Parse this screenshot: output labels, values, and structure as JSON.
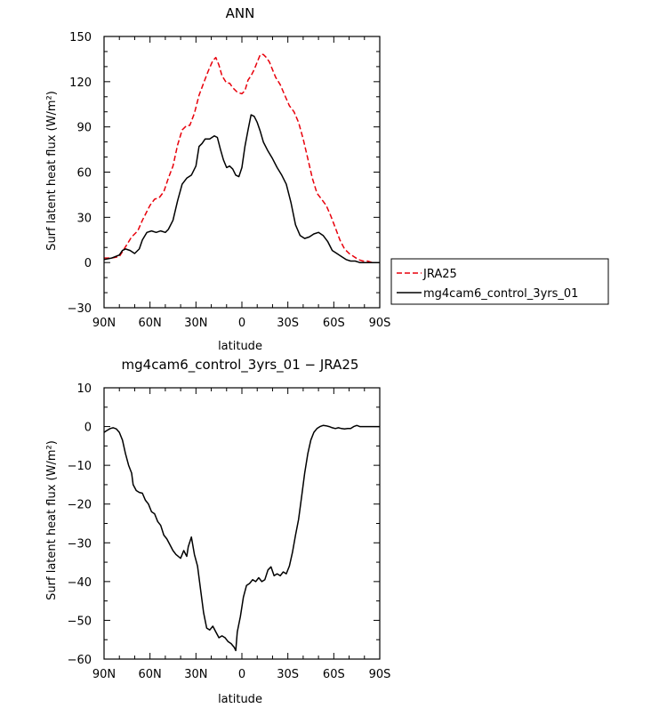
{
  "chart_data": [
    {
      "type": "line",
      "title": "ANN",
      "xlabel": "latitude",
      "ylabel": "Surf latent heat flux (W/m²)",
      "ylim": [
        -30,
        150
      ],
      "yticks": [
        -30,
        0,
        30,
        60,
        90,
        120,
        150
      ],
      "xlim": [
        90,
        -90
      ],
      "xticks": [
        90,
        60,
        30,
        0,
        -30,
        -60,
        -90
      ],
      "xtick_labels": [
        "90N",
        "60N",
        "30N",
        "0",
        "30S",
        "60S",
        "90S"
      ],
      "grid": false,
      "legend_position": "right",
      "series": [
        {
          "name": "JRA25",
          "color": "#e8000b",
          "dash": "dashed",
          "points": [
            [
              90,
              3
            ],
            [
              85,
              3
            ],
            [
              80,
              4
            ],
            [
              75,
              12
            ],
            [
              72,
              17
            ],
            [
              68,
              21
            ],
            [
              65,
              28
            ],
            [
              60,
              38
            ],
            [
              57,
              42
            ],
            [
              54,
              43
            ],
            [
              51,
              47
            ],
            [
              48,
              56
            ],
            [
              45,
              64
            ],
            [
              42,
              78
            ],
            [
              39,
              88
            ],
            [
              36,
              91
            ],
            [
              34,
              91
            ],
            [
              31,
              99
            ],
            [
              28,
              111
            ],
            [
              25,
              119
            ],
            [
              22,
              127
            ],
            [
              19,
              134
            ],
            [
              17,
              136
            ],
            [
              15,
              131
            ],
            [
              13,
              124
            ],
            [
              10,
              119
            ],
            [
              8,
              119
            ],
            [
              6,
              116
            ],
            [
              3,
              113
            ],
            [
              0,
              112
            ],
            [
              -2,
              114
            ],
            [
              -4,
              121
            ],
            [
              -6,
              124
            ],
            [
              -8,
              128
            ],
            [
              -10,
              133
            ],
            [
              -12,
              138
            ],
            [
              -14,
              138
            ],
            [
              -16,
              136
            ],
            [
              -18,
              133
            ],
            [
              -20,
              128
            ],
            [
              -22,
              123
            ],
            [
              -25,
              118
            ],
            [
              -28,
              111
            ],
            [
              -31,
              104
            ],
            [
              -34,
              100
            ],
            [
              -37,
              93
            ],
            [
              -40,
              82
            ],
            [
              -43,
              69
            ],
            [
              -46,
              56
            ],
            [
              -49,
              46
            ],
            [
              -52,
              42
            ],
            [
              -55,
              38
            ],
            [
              -58,
              31
            ],
            [
              -61,
              23
            ],
            [
              -64,
              15
            ],
            [
              -67,
              9
            ],
            [
              -70,
              6
            ],
            [
              -73,
              4
            ],
            [
              -76,
              2
            ],
            [
              -79,
              1
            ],
            [
              -82,
              1
            ],
            [
              -85,
              0
            ],
            [
              -90,
              0
            ]
          ]
        },
        {
          "name": "mg4cam6_control_3yrs_01",
          "color": "#000000",
          "dash": "solid",
          "points": [
            [
              90,
              2
            ],
            [
              85,
              3
            ],
            [
              80,
              5
            ],
            [
              78,
              8
            ],
            [
              76,
              9
            ],
            [
              73,
              8
            ],
            [
              70,
              6
            ],
            [
              67,
              9
            ],
            [
              65,
              15
            ],
            [
              62,
              20
            ],
            [
              59,
              21
            ],
            [
              56,
              20
            ],
            [
              53,
              21
            ],
            [
              50,
              20
            ],
            [
              48,
              22
            ],
            [
              45,
              28
            ],
            [
              42,
              41
            ],
            [
              39,
              52
            ],
            [
              36,
              56
            ],
            [
              33,
              58
            ],
            [
              30,
              64
            ],
            [
              28,
              77
            ],
            [
              26,
              79
            ],
            [
              24,
              82
            ],
            [
              21,
              82
            ],
            [
              18,
              84
            ],
            [
              16,
              83
            ],
            [
              14,
              75
            ],
            [
              12,
              68
            ],
            [
              10,
              63
            ],
            [
              8,
              64
            ],
            [
              6,
              62
            ],
            [
              4,
              58
            ],
            [
              2,
              57
            ],
            [
              0,
              63
            ],
            [
              -2,
              77
            ],
            [
              -4,
              88
            ],
            [
              -6,
              98
            ],
            [
              -8,
              97
            ],
            [
              -10,
              93
            ],
            [
              -12,
              87
            ],
            [
              -14,
              80
            ],
            [
              -17,
              74
            ],
            [
              -20,
              69
            ],
            [
              -23,
              63
            ],
            [
              -26,
              58
            ],
            [
              -29,
              52
            ],
            [
              -32,
              40
            ],
            [
              -35,
              25
            ],
            [
              -38,
              18
            ],
            [
              -41,
              16
            ],
            [
              -44,
              17
            ],
            [
              -47,
              19
            ],
            [
              -50,
              20
            ],
            [
              -53,
              18
            ],
            [
              -56,
              14
            ],
            [
              -59,
              8
            ],
            [
              -62,
              6
            ],
            [
              -65,
              4
            ],
            [
              -68,
              2
            ],
            [
              -71,
              1
            ],
            [
              -74,
              1
            ],
            [
              -77,
              0
            ],
            [
              -80,
              0
            ],
            [
              -85,
              0
            ],
            [
              -90,
              0
            ]
          ]
        }
      ]
    },
    {
      "type": "line",
      "title": "mg4cam6_control_3yrs_01 − JRA25",
      "xlabel": "latitude",
      "ylabel": "Surf latent heat flux (W/m²)",
      "ylim": [
        -60,
        10
      ],
      "yticks": [
        -60,
        -50,
        -40,
        -30,
        -20,
        -10,
        0,
        10
      ],
      "xlim": [
        90,
        -90
      ],
      "xticks": [
        90,
        60,
        30,
        0,
        -30,
        -60,
        -90
      ],
      "xtick_labels": [
        "90N",
        "60N",
        "30N",
        "0",
        "30S",
        "60S",
        "90S"
      ],
      "grid": false,
      "series": [
        {
          "color": "#000000",
          "dash": "solid",
          "points": [
            [
              90,
              -1.5
            ],
            [
              88,
              -1
            ],
            [
              86,
              -0.5
            ],
            [
              84,
              -0.3
            ],
            [
              82,
              -0.6
            ],
            [
              80,
              -1.5
            ],
            [
              78,
              -3.5
            ],
            [
              76,
              -7
            ],
            [
              74,
              -10
            ],
            [
              72,
              -12
            ],
            [
              71,
              -15
            ],
            [
              69,
              -16.5
            ],
            [
              67,
              -17
            ],
            [
              65,
              -17.2
            ],
            [
              63,
              -19
            ],
            [
              61,
              -20
            ],
            [
              59,
              -22
            ],
            [
              57,
              -22.5
            ],
            [
              55,
              -24.5
            ],
            [
              53,
              -25.5
            ],
            [
              51,
              -28
            ],
            [
              49,
              -29
            ],
            [
              47,
              -30.5
            ],
            [
              45,
              -32
            ],
            [
              43,
              -33
            ],
            [
              40,
              -34
            ],
            [
              38,
              -32
            ],
            [
              36,
              -33.5
            ],
            [
              35,
              -31
            ],
            [
              33,
              -28.5
            ],
            [
              31,
              -33
            ],
            [
              29,
              -36
            ],
            [
              27,
              -42
            ],
            [
              25,
              -48
            ],
            [
              23,
              -52
            ],
            [
              21,
              -52.5
            ],
            [
              19,
              -51.5
            ],
            [
              17,
              -53
            ],
            [
              15,
              -54.5
            ],
            [
              13,
              -54
            ],
            [
              11,
              -54.5
            ],
            [
              9,
              -55.5
            ],
            [
              7,
              -56
            ],
            [
              5,
              -57
            ],
            [
              4,
              -57.8
            ],
            [
              3,
              -53
            ],
            [
              1,
              -49
            ],
            [
              -1,
              -44
            ],
            [
              -3,
              -41
            ],
            [
              -5,
              -40.5
            ],
            [
              -7,
              -39.5
            ],
            [
              -9,
              -40
            ],
            [
              -11,
              -39
            ],
            [
              -13,
              -40
            ],
            [
              -15,
              -39.5
            ],
            [
              -17,
              -37
            ],
            [
              -19,
              -36.2
            ],
            [
              -21,
              -38.5
            ],
            [
              -23,
              -38
            ],
            [
              -25,
              -38.5
            ],
            [
              -27,
              -37.5
            ],
            [
              -29,
              -38
            ],
            [
              -31,
              -36
            ],
            [
              -33,
              -32.5
            ],
            [
              -35,
              -28
            ],
            [
              -37,
              -24
            ],
            [
              -39,
              -18
            ],
            [
              -41,
              -12
            ],
            [
              -43,
              -7
            ],
            [
              -45,
              -3.5
            ],
            [
              -47,
              -1.5
            ],
            [
              -49,
              -0.5
            ],
            [
              -51,
              0
            ],
            [
              -53,
              0.3
            ],
            [
              -55,
              0.2
            ],
            [
              -57,
              0
            ],
            [
              -59,
              -0.3
            ],
            [
              -61,
              -0.5
            ],
            [
              -63,
              -0.3
            ],
            [
              -65,
              -0.5
            ],
            [
              -67,
              -0.6
            ],
            [
              -69,
              -0.5
            ],
            [
              -71,
              -0.5
            ],
            [
              -73,
              0
            ],
            [
              -75,
              0.3
            ],
            [
              -77,
              0
            ],
            [
              -80,
              0
            ],
            [
              -85,
              0
            ],
            [
              -90,
              0
            ]
          ]
        }
      ]
    }
  ]
}
